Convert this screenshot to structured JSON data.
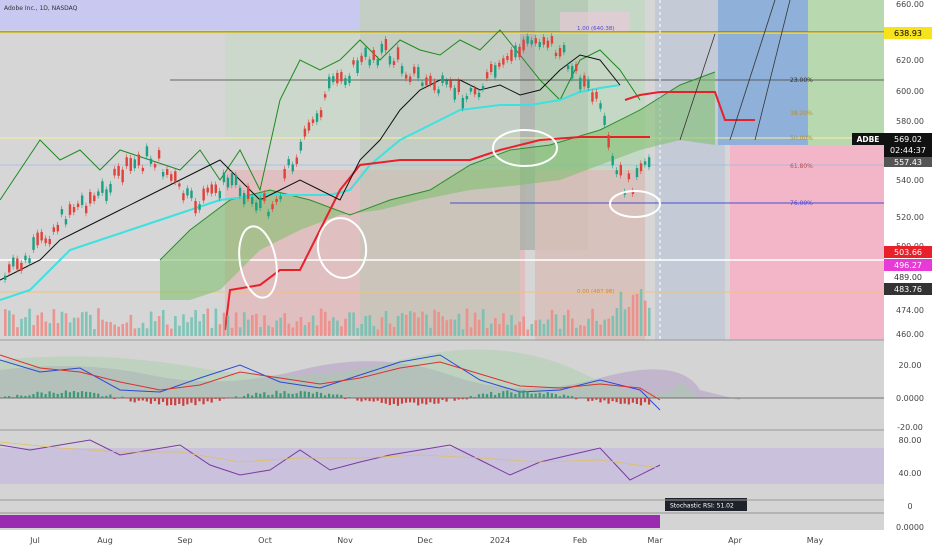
{
  "symbol_title": "Adobe Inc., 1D, NASDAQ",
  "ticker": "ADBE",
  "price_tags": {
    "current": "569.02",
    "countdown": "02:44:37",
    "prev": "557.43",
    "level_top": "638.93",
    "level_red": "503.66",
    "level_pink": "496.27",
    "level_489": "489.00",
    "level_dark": "483.76"
  },
  "price_axis_ticks": [
    "660.00",
    "620.00",
    "600.00",
    "580.00",
    "560.00",
    "540.00",
    "520.00",
    "500.00",
    "474.00",
    "460.00"
  ],
  "macd_axis_ticks": [
    "20.00",
    "0.0000",
    "-20.00"
  ],
  "rsi_axis_ticks": [
    "80.00",
    "40.00"
  ],
  "stoch_axis_ticks": [
    "0",
    "0.0000"
  ],
  "time_axis": [
    "Jul",
    "Aug",
    "Sep",
    "Oct",
    "Nov",
    "Dec",
    "2024",
    "Feb",
    "Mar",
    "Apr",
    "May"
  ],
  "fib_labels": {
    "f23": "23.00%",
    "f38": "38.20%",
    "f50": "50.00%",
    "f61": "61.80%",
    "f76": "76.00%",
    "top": "1.00 (640.38)",
    "bottom": "0.00 (487.98)"
  },
  "stoch_tooltip": "Stochastic RSI: 51.02",
  "chart_data": {
    "type": "line",
    "title": "Adobe Inc., 1D, NASDAQ",
    "x": [
      "Jul",
      "Aug",
      "Sep",
      "Oct",
      "Nov",
      "Dec",
      "2024",
      "Feb",
      "Mar"
    ],
    "ylim": [
      460,
      660
    ],
    "series": [
      {
        "name": "ADBE",
        "values": [
          495,
          515,
          525,
          505,
          545,
          590,
          610,
          620,
          569
        ]
      }
    ]
  },
  "colors": {
    "up": "#1aa083",
    "down": "#e0413a",
    "cyan": "#3fe0e0",
    "kumo_red": "#e8202a",
    "fib_blue": "#4b4bd4",
    "yellow": "#f7e21e",
    "magenta": "#e83ad6"
  }
}
